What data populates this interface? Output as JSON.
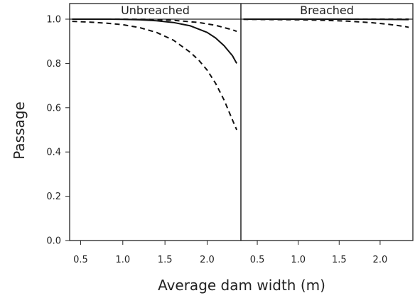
{
  "chart_data": {
    "type": "line",
    "xlabel": "Average dam width (m)",
    "ylabel": "Passage",
    "ylim": [
      0,
      1
    ],
    "y_ticks": [
      "0.0",
      "0.2",
      "0.4",
      "0.6",
      "0.8",
      "1.0"
    ],
    "x_ticks": [
      "0.5",
      "1.0",
      "1.5",
      "2.0"
    ],
    "grid": false,
    "panels": [
      {
        "strip_label": "Unbreached",
        "xlim": [
          0.37,
          2.4
        ],
        "series": [
          {
            "style": "solid",
            "x": [
              0.4,
              0.6,
              0.8,
              1.0,
              1.2,
              1.4,
              1.6,
              1.8,
              2.0,
              2.1,
              2.2,
              2.3,
              2.35
            ],
            "y": [
              1.0,
              1.0,
              1.0,
              0.999,
              0.997,
              0.993,
              0.985,
              0.97,
              0.94,
              0.915,
              0.88,
              0.835,
              0.8
            ]
          },
          {
            "style": "dashed",
            "x": [
              0.4,
              0.7,
              1.0,
              1.3,
              1.6,
              1.9,
              2.1,
              2.3,
              2.35
            ],
            "y": [
              1.0,
              1.0,
              1.0,
              0.999,
              0.995,
              0.985,
              0.972,
              0.952,
              0.945
            ]
          },
          {
            "style": "dashed",
            "x": [
              0.4,
              0.6,
              0.8,
              1.0,
              1.2,
              1.4,
              1.6,
              1.8,
              1.9,
              2.0,
              2.1,
              2.2,
              2.3,
              2.35
            ],
            "y": [
              0.99,
              0.987,
              0.982,
              0.975,
              0.962,
              0.94,
              0.905,
              0.85,
              0.815,
              0.77,
              0.71,
              0.635,
              0.545,
              0.5
            ]
          }
        ]
      },
      {
        "strip_label": "Breached",
        "xlim": [
          0.3,
          2.4
        ],
        "series": [
          {
            "style": "solid",
            "x": [
              0.33,
              1.0,
              1.5,
              2.0,
              2.35
            ],
            "y": [
              1.0,
              1.0,
              1.0,
              0.999,
              0.998
            ]
          },
          {
            "style": "dashed",
            "x": [
              0.33,
              1.0,
              1.5,
              2.0,
              2.35
            ],
            "y": [
              1.0,
              1.0,
              1.0,
              1.0,
              1.0
            ]
          },
          {
            "style": "dashed",
            "x": [
              0.33,
              0.7,
              1.0,
              1.3,
              1.6,
              1.9,
              2.1,
              2.3,
              2.35
            ],
            "y": [
              0.999,
              0.998,
              0.997,
              0.995,
              0.991,
              0.984,
              0.977,
              0.967,
              0.963
            ]
          }
        ]
      }
    ]
  }
}
